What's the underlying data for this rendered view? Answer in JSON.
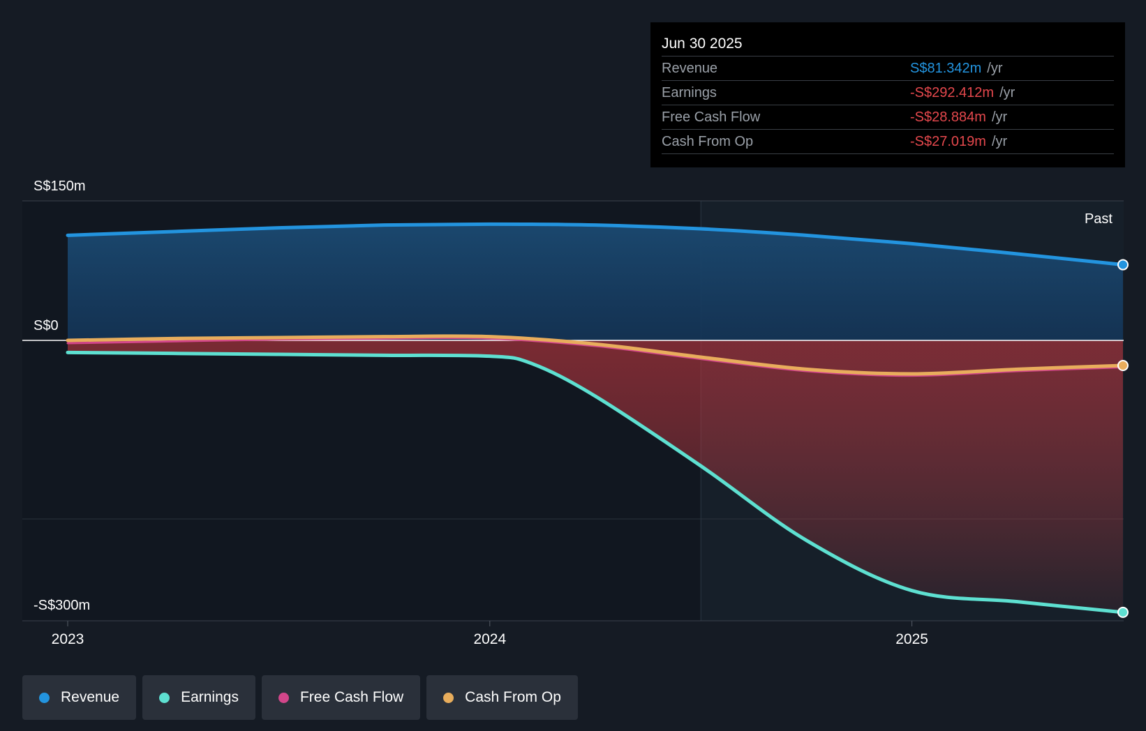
{
  "tooltip": {
    "date": "Jun 30 2025",
    "rows": [
      {
        "label": "Revenue",
        "value": "S$81.342m",
        "unit": "/yr",
        "color": "#2394df"
      },
      {
        "label": "Earnings",
        "value": "-S$292.412m",
        "unit": "/yr",
        "color": "#e5484d"
      },
      {
        "label": "Free Cash Flow",
        "value": "-S$28.884m",
        "unit": "/yr",
        "color": "#e5484d"
      },
      {
        "label": "Cash From Op",
        "value": "-S$27.019m",
        "unit": "/yr",
        "color": "#e5484d"
      }
    ]
  },
  "legend": [
    {
      "label": "Revenue",
      "color": "#2394df"
    },
    {
      "label": "Earnings",
      "color": "#5ee0d1"
    },
    {
      "label": "Free Cash Flow",
      "color": "#d2468a"
    },
    {
      "label": "Cash From Op",
      "color": "#e8ad5c"
    }
  ],
  "chart_data": {
    "type": "line",
    "title": "",
    "past_label": "Past",
    "y_tick_labels": [
      "S$150m",
      "S$0",
      "-S$300m"
    ],
    "y_ticks": [
      150,
      0,
      -300
    ],
    "ylim": [
      -300,
      150
    ],
    "x_tick_labels": [
      "2023",
      "2024",
      "2025"
    ],
    "x_ticks": [
      2023.0,
      2024.0,
      2025.0
    ],
    "xlim": [
      2022.9,
      2025.5
    ],
    "forecast_divider_x": 2024.5,
    "series": [
      {
        "name": "Revenue",
        "color": "#2394df",
        "x": [
          2023.0,
          2023.25,
          2023.5,
          2023.75,
          2024.0,
          2024.25,
          2024.5,
          2024.75,
          2025.0,
          2025.25,
          2025.5
        ],
        "y": [
          113,
          117,
          121,
          124,
          125,
          124,
          120,
          113,
          104,
          93,
          81.342
        ]
      },
      {
        "name": "Earnings",
        "color": "#5ee0d1",
        "x": [
          2023.0,
          2023.25,
          2023.5,
          2023.75,
          2024.0,
          2024.1,
          2024.25,
          2024.5,
          2024.75,
          2025.0,
          2025.25,
          2025.5
        ],
        "y": [
          -13,
          -14,
          -15,
          -16,
          -17,
          -25,
          -60,
          -135,
          -215,
          -269,
          -281,
          -292.412
        ]
      },
      {
        "name": "Free Cash Flow",
        "color": "#d2468a",
        "x": [
          2023.0,
          2023.25,
          2023.5,
          2023.75,
          2024.0,
          2024.25,
          2024.5,
          2024.75,
          2025.0,
          2025.25,
          2025.5
        ],
        "y": [
          -3,
          -1,
          1,
          2,
          2,
          -6,
          -20,
          -33,
          -38,
          -33,
          -28.884
        ]
      },
      {
        "name": "Cash From Op",
        "color": "#e8ad5c",
        "x": [
          2023.0,
          2023.25,
          2023.5,
          2023.75,
          2024.0,
          2024.25,
          2024.5,
          2024.75,
          2025.0,
          2025.25,
          2025.5
        ],
        "y": [
          0,
          2,
          3,
          4,
          4,
          -4,
          -18,
          -31,
          -36,
          -31,
          -27.019
        ]
      }
    ]
  }
}
